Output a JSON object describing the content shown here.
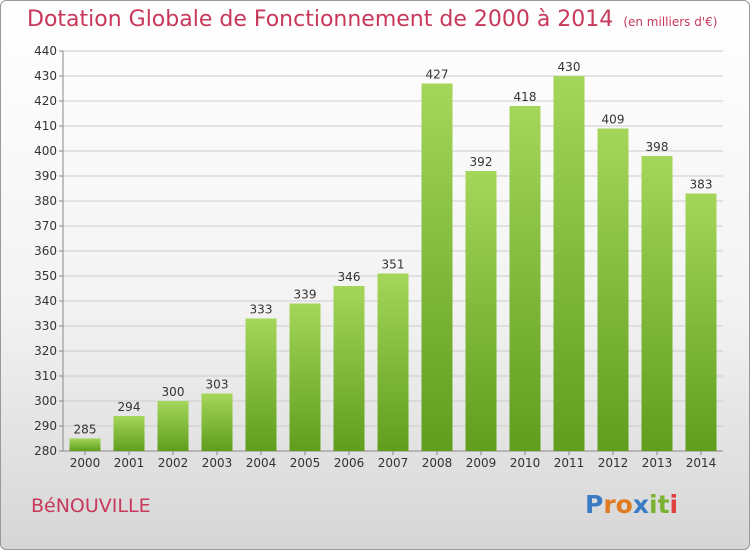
{
  "title": "Dotation Globale de Fonctionnement de 2000 à 2014",
  "unit": "(en milliers d'€)",
  "commune": "BéNOUVILLE",
  "logo": {
    "letters": [
      "P",
      "r",
      "o",
      "x",
      "i",
      "t",
      "i"
    ],
    "colors": [
      "#3a7cc4",
      "#e07b22",
      "#e07b22",
      "#3a7cc4",
      "#7ab332",
      "#7ab332",
      "#e04040"
    ]
  },
  "colors": {
    "bar_light": "#a4d65a",
    "bar_dark": "#5f9e1c",
    "title": "#c8385a",
    "grid": "#cccccc"
  },
  "chart_data": {
    "type": "bar",
    "categories": [
      "2000",
      "2001",
      "2002",
      "2003",
      "2004",
      "2005",
      "2006",
      "2007",
      "2008",
      "2009",
      "2010",
      "2011",
      "2012",
      "2013",
      "2014"
    ],
    "values": [
      285,
      294,
      300,
      303,
      333,
      339,
      346,
      351,
      427,
      392,
      418,
      430,
      409,
      398,
      383
    ],
    "yticks": [
      280,
      290,
      300,
      310,
      320,
      330,
      340,
      350,
      360,
      370,
      380,
      390,
      400,
      410,
      420,
      430,
      440
    ],
    "ylim": [
      280,
      440
    ],
    "grid": true
  }
}
